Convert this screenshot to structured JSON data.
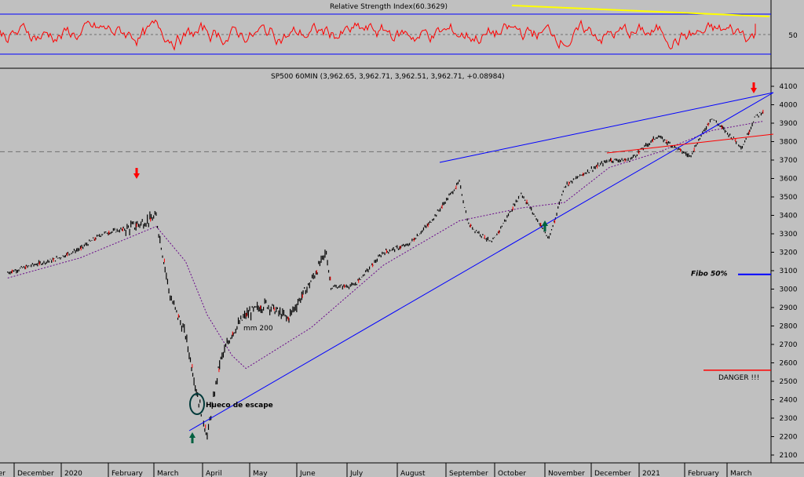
{
  "rsi_panel": {
    "title": "Relative Strength Index(60.3629)",
    "level_label": "50"
  },
  "price_panel": {
    "title": "SP500 60MIN (3,962.65, 3,962.71, 3,962.51, 3,962.71, +0.08984)",
    "ma_label": "mm 200",
    "gap_label": "Hueco de escape",
    "fibo_label": "Fibo 50%",
    "danger_label": "DANGER !!!"
  },
  "x_axis": {
    "labels": [
      "ber",
      "December",
      "2020",
      "February",
      "March",
      "April",
      "May",
      "June",
      "July",
      "August",
      "September",
      "October",
      "November",
      "December",
      "2021",
      "February",
      "March"
    ]
  },
  "colors": {
    "background": "#c0c0c0",
    "rsi_line": "#ff0000",
    "rsi_band": "#0000ff",
    "rsi_trend": "#ffff00",
    "price": "#000000",
    "ma200": "#6a0a8a",
    "trendline": "#0000ff",
    "support": "#ff0000",
    "fibo": "#0000ff",
    "danger": "#ff0000",
    "arrow_top": "#ff0000",
    "arrow_bottom": "#006040"
  },
  "chart_data": {
    "type": "line",
    "title": "SP500 60MIN",
    "ylim": [
      2100,
      4100
    ],
    "y_ticks": [
      2100,
      2200,
      2300,
      2400,
      2500,
      2600,
      2700,
      2800,
      2900,
      3000,
      3100,
      3200,
      3300,
      3400,
      3500,
      3600,
      3700,
      3800,
      3900,
      4000,
      4100
    ],
    "x_tick_labels": [
      "ber",
      "December",
      "2020",
      "February",
      "March",
      "April",
      "May",
      "June",
      "July",
      "August",
      "September",
      "October",
      "November",
      "December",
      "2021",
      "February",
      "March"
    ],
    "last_bar": {
      "open": 3962.65,
      "high": 3962.71,
      "low": 3962.51,
      "close": 3962.71,
      "change": 0.08984
    },
    "series": [
      {
        "name": "SP500 60MIN",
        "x": [
          "2019-11-15",
          "2019-12-01",
          "2019-12-15",
          "2020-01-01",
          "2020-01-15",
          "2020-02-01",
          "2020-02-19",
          "2020-02-28",
          "2020-03-09",
          "2020-03-16",
          "2020-03-23",
          "2020-03-31",
          "2020-04-08",
          "2020-04-17",
          "2020-04-30",
          "2020-05-14",
          "2020-05-29",
          "2020-06-08",
          "2020-06-11",
          "2020-06-26",
          "2020-07-15",
          "2020-07-31",
          "2020-08-14",
          "2020-09-02",
          "2020-09-08",
          "2020-09-23",
          "2020-10-12",
          "2020-10-30",
          "2020-11-09",
          "2020-11-24",
          "2020-12-08",
          "2020-12-21",
          "2021-01-08",
          "2021-01-29",
          "2021-02-12",
          "2021-03-04",
          "2021-03-12",
          "2021-03-17"
        ],
        "values": [
          3090,
          3130,
          3160,
          3220,
          3300,
          3330,
          3390,
          2960,
          2750,
          2450,
          2200,
          2600,
          2760,
          2860,
          2920,
          2840,
          3040,
          3200,
          3010,
          3020,
          3200,
          3240,
          3360,
          3580,
          3350,
          3250,
          3520,
          3270,
          3560,
          3640,
          3700,
          3700,
          3830,
          3720,
          3930,
          3770,
          3930,
          3962.71
        ]
      },
      {
        "name": "mm 200",
        "x": [
          "2019-11-15",
          "2020-01-01",
          "2020-02-19",
          "2020-03-09",
          "2020-03-23",
          "2020-04-08",
          "2020-04-17",
          "2020-05-29",
          "2020-07-15",
          "2020-09-02",
          "2020-10-12",
          "2020-11-09",
          "2020-12-08",
          "2021-01-08",
          "2021-02-12",
          "2021-03-17"
        ],
        "values": [
          3060,
          3170,
          3340,
          3150,
          2860,
          2640,
          2570,
          2790,
          3130,
          3370,
          3440,
          3470,
          3660,
          3740,
          3860,
          3910
        ]
      }
    ],
    "rsi": {
      "name": "Relative Strength Index",
      "value": 60.3629,
      "reference_level": 50
    },
    "annotations": {
      "fibo_50": 3080,
      "danger_level": 2560,
      "dashed_level": 3745
    }
  }
}
